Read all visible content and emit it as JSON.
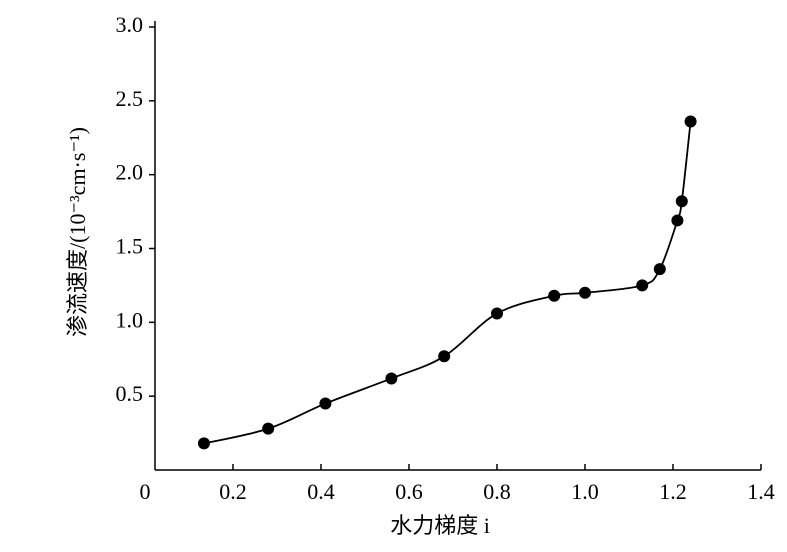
{
  "chart_data": {
    "type": "scatter",
    "xlabel": "水力梯度 i",
    "ylabel": "渗流速度/(10⁻³cm·s⁻¹)",
    "xlim": [
      0,
      1.4
    ],
    "ylim": [
      0,
      3
    ],
    "xticks": [
      0,
      0.2,
      0.4,
      0.6,
      0.8,
      {
        "value": 1,
        "label": "1.0"
      },
      1.2,
      1.4
    ],
    "yticks": [
      0.5,
      {
        "value": 1,
        "label": "1.0"
      },
      1.5,
      {
        "value": 2,
        "label": "2.0"
      },
      2.5,
      {
        "value": 3,
        "label": "3.0"
      }
    ],
    "color": "#000000",
    "smooth_line": true,
    "x": [
      0.134,
      0.28,
      0.41,
      0.56,
      0.68,
      0.8,
      0.93,
      1.0,
      1.13,
      1.17,
      1.21,
      1.22,
      1.24
    ],
    "values": [
      0.18,
      0.28,
      0.45,
      0.62,
      0.77,
      1.06,
      1.18,
      1.2,
      1.25,
      1.36,
      1.69,
      1.82,
      2.36
    ]
  }
}
